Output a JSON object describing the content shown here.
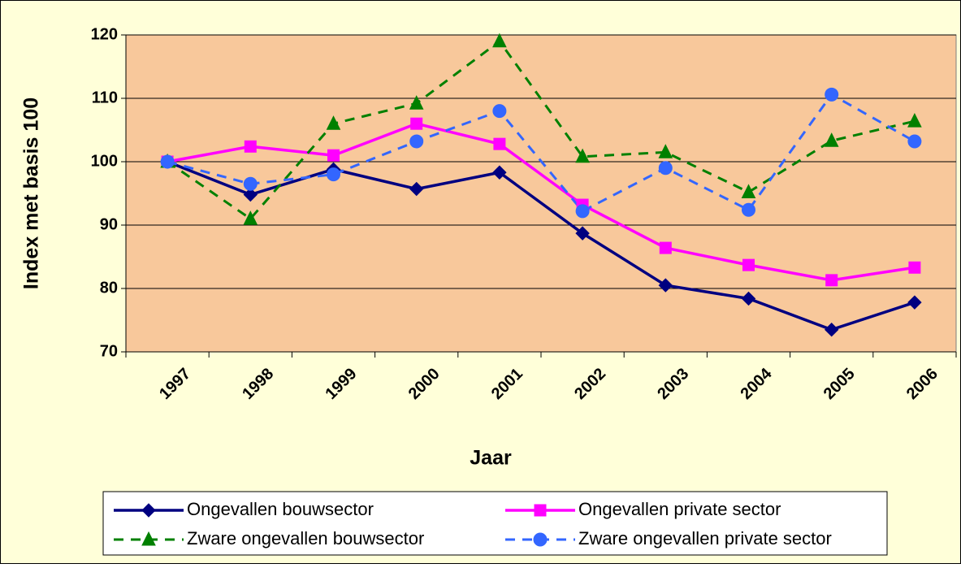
{
  "chart_data": {
    "type": "line",
    "xlabel": "Jaar",
    "ylabel": "Index met basis 100",
    "categories": [
      "1997",
      "1998",
      "1999",
      "2000",
      "2001",
      "2002",
      "2003",
      "2004",
      "2005",
      "2006"
    ],
    "series": [
      {
        "name": "Ongevallen bouwsector",
        "color": "#000080",
        "marker": "diamond",
        "dashed": false,
        "values": [
          100,
          94.8,
          98.8,
          95.7,
          98.3,
          88.7,
          80.5,
          78.4,
          73.5,
          77.8
        ]
      },
      {
        "name": "Ongevallen private sector",
        "color": "#ff00ff",
        "marker": "square",
        "dashed": false,
        "values": [
          100,
          102.4,
          101,
          106,
          102.8,
          93.2,
          86.4,
          83.7,
          81.3,
          83.3
        ]
      },
      {
        "name": "Zware ongevallen bouwsector",
        "color": "#008000",
        "marker": "triangle",
        "dashed": true,
        "values": [
          100,
          91,
          106,
          109.2,
          119,
          100.8,
          101.5,
          95.2,
          103.3,
          106.4
        ]
      },
      {
        "name": "Zware ongevallen private sector",
        "color": "#3366ff",
        "marker": "circle",
        "dashed": true,
        "values": [
          100,
          96.5,
          98,
          103.2,
          108,
          92.2,
          99,
          92.4,
          110.6,
          103.2
        ]
      }
    ],
    "ylim": [
      70,
      120
    ],
    "yticks": [
      70,
      80,
      90,
      100,
      110,
      120
    ],
    "grid": true,
    "legend": "bottom"
  }
}
